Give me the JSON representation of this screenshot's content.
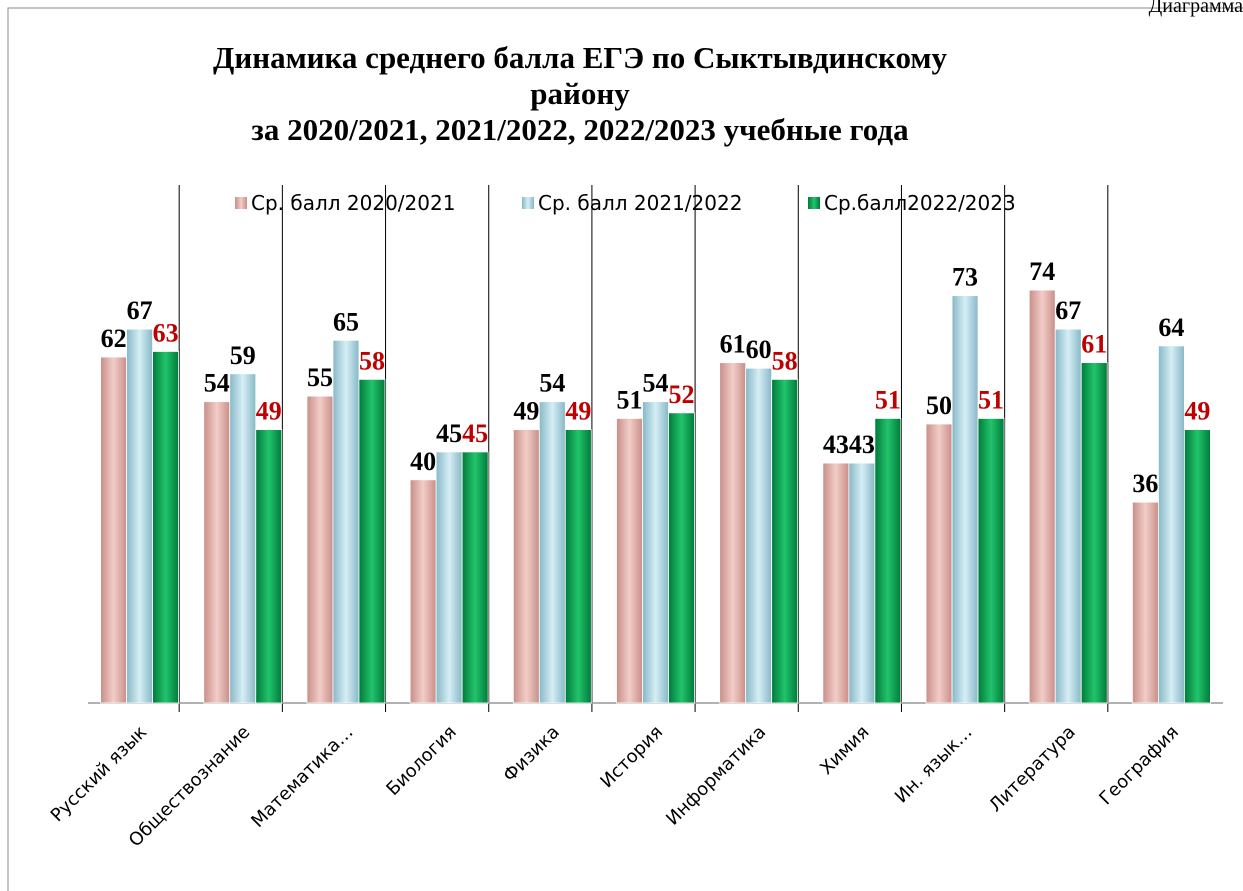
{
  "caption": "Диаграмма",
  "chart_data": {
    "type": "bar",
    "title": [
      "Динамика среднего балла ЕГЭ по Сыктывдинскому",
      "району",
      "за 2020/2021, 2021/2022, 2022/2023  учебные года"
    ],
    "categories": [
      "Русский язык",
      "Обществознание",
      "Математика…",
      "Биология",
      "Физика",
      "История",
      "Информатика",
      "Химия",
      "Ин. язык…",
      "Литература",
      "География"
    ],
    "series": [
      {
        "name": "Ср. балл 2020/2021",
        "color": "#e6b3ad",
        "label_color": "#000000",
        "values": [
          62,
          54,
          55,
          40,
          49,
          51,
          61,
          43,
          50,
          74,
          36
        ]
      },
      {
        "name": "Ср. балл 2021/2022",
        "color": "#b4dbe6",
        "label_color": "#000000",
        "values": [
          67,
          59,
          65,
          45,
          54,
          54,
          60,
          43,
          73,
          67,
          64
        ]
      },
      {
        "name": "Ср.балл2022/2023",
        "color": "#00a651",
        "label_color": "#c00000",
        "values": [
          63,
          49,
          58,
          45,
          49,
          52,
          58,
          51,
          51,
          61,
          49
        ]
      }
    ],
    "ylim": [
      0,
      100
    ],
    "legend": "top"
  }
}
